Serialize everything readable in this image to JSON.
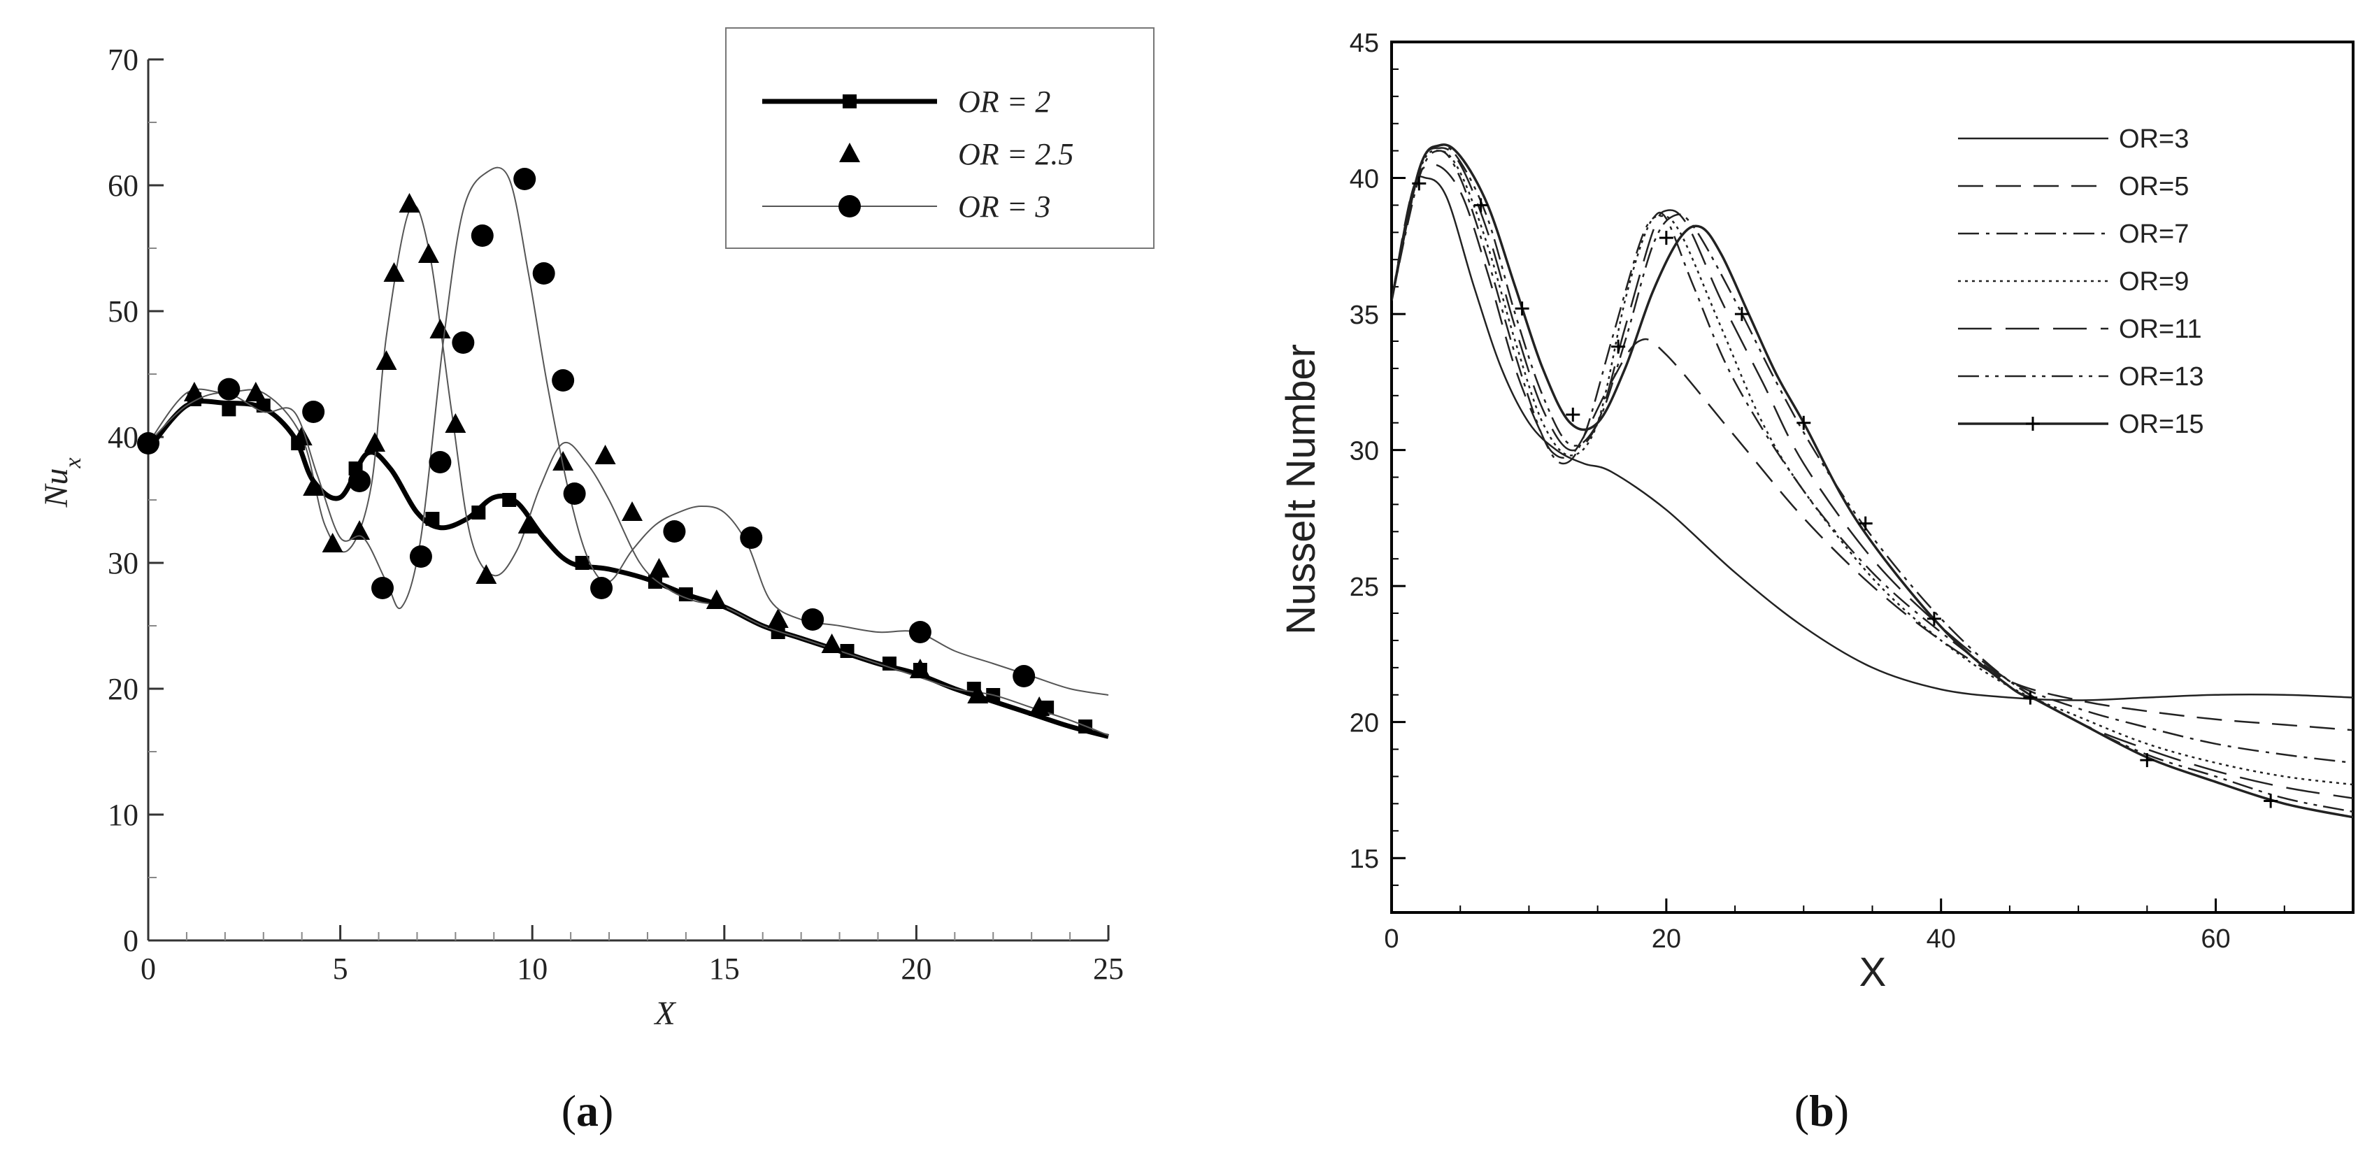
{
  "chart_data": [
    {
      "panel": "a",
      "type": "line",
      "caption_open": "(",
      "caption_letter": "a",
      "caption_close": ")",
      "xlabel": "X",
      "ylabel": "Nu",
      "ylabel_sub": "x",
      "xlim": [
        0,
        25
      ],
      "ylim": [
        0,
        70
      ],
      "xticks": [
        "0",
        "5",
        "10",
        "15",
        "20",
        "25"
      ],
      "yticks": [
        "0",
        "10",
        "20",
        "30",
        "40",
        "50",
        "60",
        "70"
      ],
      "legend_position": "top-right",
      "series": [
        {
          "name": "OR = 2",
          "style": "thick-line-square",
          "x": [
            0,
            1,
            2,
            3,
            3.8,
            4.3,
            5,
            5.7,
            6.3,
            7,
            7.6,
            8.3,
            9,
            9.6,
            10.3,
            11,
            12,
            13,
            14,
            15,
            16,
            17,
            18,
            19,
            20,
            21,
            22,
            23,
            24,
            25
          ],
          "y": [
            39,
            42.5,
            42.7,
            42.3,
            40,
            36.5,
            35.2,
            38.7,
            37.5,
            34,
            32.8,
            33.5,
            35.2,
            34.8,
            32,
            30,
            29.5,
            28.7,
            27.5,
            26.5,
            25,
            24,
            23,
            22,
            21.2,
            20,
            19,
            18,
            17,
            16.2
          ],
          "marker_x": [
            0,
            1.2,
            2.1,
            3.0,
            3.9,
            5.4,
            7.4,
            8.6,
            9.4,
            11.3,
            13.2,
            14,
            16.4,
            18.2,
            19.3,
            20.1,
            21.5,
            22,
            23.4,
            24.4
          ],
          "marker_y": [
            39.5,
            43,
            42.2,
            42.5,
            39.5,
            37.5,
            33.5,
            34,
            35,
            30,
            28.5,
            27.5,
            24.5,
            23,
            22,
            21.5,
            20,
            19.5,
            18.5,
            17
          ]
        },
        {
          "name": "OR = 2.5",
          "style": "triangle-markers-on-thin-line",
          "x": [
            0,
            1,
            2,
            3,
            4,
            4.6,
            5.2,
            5.8,
            6.2,
            6.8,
            7.3,
            7.9,
            8.4,
            9,
            9.6,
            10.2,
            10.8,
            11.4,
            12,
            12.8,
            13.5,
            14.2,
            15,
            16,
            17,
            18,
            19,
            20,
            21,
            22,
            23,
            24,
            25
          ],
          "y": [
            39.5,
            43.5,
            43.5,
            43.5,
            40,
            33,
            31,
            36,
            48,
            58,
            55,
            42,
            32,
            29,
            31,
            36,
            39.5,
            38,
            35,
            30,
            28,
            27,
            26.5,
            25,
            24,
            23,
            22,
            21,
            20,
            19.5,
            18.5,
            17.5,
            16.3
          ],
          "marker_x": [
            1.2,
            2.8,
            4.0,
            4.3,
            4.8,
            5.5,
            5.9,
            6.2,
            6.4,
            6.8,
            7.3,
            7.6,
            8.0,
            8.8,
            9.9,
            10.8,
            11.9,
            12.6,
            13.3,
            14.8,
            16.4,
            17.8,
            20.1,
            21.6,
            23.2
          ],
          "marker_y": [
            43.5,
            43.5,
            40,
            36,
            31.5,
            32.5,
            39.5,
            46,
            53,
            58.5,
            54.5,
            48.5,
            41,
            29,
            33,
            38,
            38.5,
            34,
            29.5,
            27,
            25.5,
            23.5,
            21.5,
            19.5,
            18.5
          ]
        },
        {
          "name": "OR = 3",
          "style": "thin-line-circle",
          "x": [
            0,
            1,
            2,
            3,
            3.8,
            4.4,
            5,
            5.6,
            6.2,
            6.6,
            7.1,
            7.7,
            8.2,
            8.8,
            9.4,
            9.9,
            10.4,
            11,
            11.5,
            12,
            12.6,
            13.2,
            13.8,
            14.4,
            15,
            15.6,
            16.2,
            17,
            18,
            19,
            20,
            21,
            22,
            23,
            24,
            25
          ],
          "y": [
            39.5,
            42.5,
            43.5,
            42,
            42,
            37,
            32,
            32,
            28.5,
            26.5,
            32,
            48,
            58,
            61,
            60.5,
            53,
            44,
            35,
            30,
            28.5,
            31,
            33,
            34,
            34.5,
            34,
            31.5,
            27,
            25.5,
            25,
            24.5,
            24.5,
            23,
            22,
            21,
            20,
            19.5
          ],
          "marker_x": [
            0,
            2.1,
            4.3,
            5.5,
            6.1,
            7.1,
            7.6,
            8.2,
            8.7,
            9.8,
            10.3,
            10.8,
            11.1,
            11.8,
            13.7,
            15.7,
            17.3,
            20.1,
            22.8
          ],
          "marker_y": [
            39.5,
            43.8,
            42,
            36.5,
            28,
            30.5,
            38,
            47.5,
            56,
            60.5,
            53,
            44.5,
            35.5,
            28,
            32.5,
            32,
            25.5,
            24.5,
            21
          ]
        }
      ]
    },
    {
      "panel": "b",
      "type": "line",
      "caption_open": "(",
      "caption_letter": "b",
      "caption_close": ")",
      "xlabel": "X",
      "ylabel": "Nusselt Number",
      "xlim": [
        0,
        70
      ],
      "ylim": [
        13,
        45
      ],
      "xticks": [
        "0",
        "20",
        "40",
        "60"
      ],
      "yticks": [
        "15",
        "20",
        "25",
        "30",
        "35",
        "40",
        "45"
      ],
      "legend_position": "top-right",
      "series": [
        {
          "name": "OR=3",
          "dash": "solid",
          "x": [
            0,
            1.5,
            2.5,
            4,
            6,
            8,
            10,
            12,
            14,
            16,
            20,
            25,
            30,
            35,
            40,
            45,
            50,
            55,
            60,
            65,
            70
          ],
          "y": [
            35.5,
            39.5,
            40,
            39.3,
            36,
            33,
            31,
            30,
            29.5,
            29.2,
            27.8,
            25.5,
            23.5,
            22,
            21.2,
            20.9,
            20.8,
            20.9,
            21,
            21,
            20.9
          ]
        },
        {
          "name": "OR=5",
          "dash": "long-dash",
          "x": [
            0,
            1.5,
            3,
            5,
            7,
            9,
            11,
            12,
            13,
            14,
            16,
            18,
            20,
            25,
            30,
            35,
            40,
            45,
            50,
            55,
            60,
            65,
            70
          ],
          "y": [
            35.5,
            39.5,
            40.5,
            39.5,
            36.5,
            33,
            30.5,
            29.8,
            29.8,
            30.5,
            32.5,
            34,
            33.5,
            30.5,
            27.5,
            25,
            23,
            21.5,
            20.8,
            20.4,
            20.1,
            19.9,
            19.7
          ]
        },
        {
          "name": "OR=7",
          "dash": "dash-dot",
          "x": [
            0,
            2,
            3.5,
            5,
            7,
            9,
            11,
            12.5,
            14,
            16,
            18,
            19,
            20,
            22,
            25,
            30,
            35,
            40,
            45,
            50,
            55,
            60,
            65,
            70
          ],
          "y": [
            35.5,
            40,
            41,
            40,
            37,
            33.5,
            30.5,
            29.5,
            30.5,
            34,
            37.5,
            38.5,
            38.5,
            36,
            32.5,
            28.5,
            25.5,
            23.3,
            21.5,
            20.5,
            19.8,
            19.2,
            18.8,
            18.5
          ]
        },
        {
          "name": "OR=9",
          "dash": "dotted",
          "x": [
            0,
            2,
            3.5,
            5,
            7,
            9,
            11,
            13,
            15,
            17,
            18.5,
            19.5,
            21,
            24,
            27,
            30,
            35,
            40,
            45,
            50,
            55,
            60,
            65,
            70
          ],
          "y": [
            35.5,
            40.2,
            41,
            40.2,
            37.5,
            34,
            31,
            29.8,
            31,
            35.5,
            38,
            38.6,
            38,
            34.5,
            31,
            28.5,
            25.3,
            23,
            21.3,
            20.2,
            19.2,
            18.5,
            18,
            17.7
          ]
        },
        {
          "name": "OR=11",
          "dash": "long-dash-wide",
          "x": [
            0,
            2,
            3.5,
            5,
            7,
            9,
            11,
            13,
            15,
            17,
            19,
            20,
            21.5,
            24,
            27,
            30,
            35,
            40,
            45,
            50,
            55,
            60,
            65,
            70
          ],
          "y": [
            35.5,
            40.3,
            41.1,
            40.5,
            38,
            34.5,
            31.5,
            30,
            31,
            34.5,
            38,
            38.8,
            38.3,
            35.5,
            32.5,
            29.5,
            26,
            23.5,
            21.5,
            20,
            19,
            18.2,
            17.6,
            17.2
          ]
        },
        {
          "name": "OR=13",
          "dash": "dash-dot-dot",
          "x": [
            0,
            2,
            3.5,
            5,
            7,
            9,
            11,
            13,
            15,
            17,
            19,
            20.5,
            22,
            25,
            28,
            31,
            35,
            40,
            45,
            50,
            55,
            60,
            65,
            70
          ],
          "y": [
            35.5,
            40.3,
            41.2,
            40.6,
            38.5,
            35,
            32,
            30.2,
            31,
            34,
            37.5,
            38.6,
            38.2,
            35.5,
            32.5,
            29.8,
            26.8,
            23.8,
            21.5,
            20,
            18.8,
            18,
            17.2,
            16.7
          ]
        },
        {
          "name": "OR=15",
          "dash": "solid-plus",
          "x": [
            0,
            2,
            3.5,
            5,
            7,
            9,
            11,
            13,
            15,
            17,
            19,
            21,
            22.5,
            24,
            26,
            28,
            30,
            34,
            40,
            45,
            47,
            50,
            55,
            60,
            65,
            70
          ],
          "y": [
            35.5,
            40.3,
            41.2,
            40.8,
            39,
            36,
            33,
            31,
            31,
            33,
            35.8,
            37.8,
            38.2,
            37.2,
            35,
            32.8,
            31,
            27.3,
            23.5,
            21.3,
            20.8,
            20,
            18.7,
            17.8,
            17,
            16.5
          ],
          "marker_x": [
            2,
            6.5,
            9.5,
            13.2,
            16.5,
            20,
            25.5,
            30,
            34.5,
            39.5,
            46.5,
            55,
            64
          ],
          "marker_y": [
            39.8,
            39,
            35.2,
            31.3,
            33.8,
            37.8,
            35,
            31,
            27.3,
            23.8,
            20.9,
            18.6,
            17.1
          ]
        }
      ]
    }
  ]
}
